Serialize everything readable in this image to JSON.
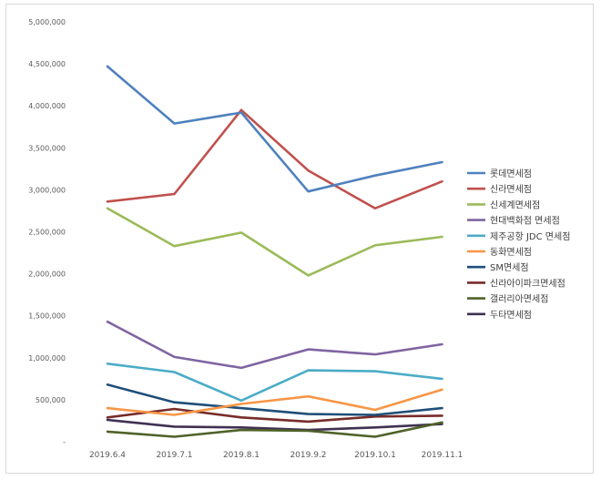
{
  "chart_data": {
    "type": "line",
    "title": "",
    "xlabel": "",
    "ylabel": "",
    "categories": [
      "2019.6.4",
      "2019.7.1",
      "2019.8.1",
      "2019.9.2",
      "2019.10.1",
      "2019.11.1"
    ],
    "ylim": [
      0,
      5000000
    ],
    "yticks": [
      0,
      500000,
      1000000,
      1500000,
      2000000,
      2500000,
      3000000,
      3500000,
      4000000,
      4500000,
      5000000
    ],
    "ytick_labels": [
      "-",
      "500,000",
      "1,000,000",
      "1,500,000",
      "2,000,000",
      "2,500,000",
      "3,000,000",
      "3,500,000",
      "4,000,000",
      "4,500,000",
      "5,000,000"
    ],
    "grid": false,
    "legend_position": "right",
    "series": [
      {
        "name": "롯데면세점",
        "color": "#4f81bd",
        "values": [
          4470000,
          3790000,
          3920000,
          2980000,
          3170000,
          3330000
        ]
      },
      {
        "name": "신라면세점",
        "color": "#c0504d",
        "values": [
          2860000,
          2950000,
          3950000,
          3230000,
          2780000,
          3100000
        ]
      },
      {
        "name": "신세계면세점",
        "color": "#9bbb59",
        "values": [
          2780000,
          2330000,
          2490000,
          1980000,
          2340000,
          2440000
        ]
      },
      {
        "name": "현대백화점 면세점",
        "color": "#8064a2",
        "values": [
          1430000,
          1010000,
          880000,
          1100000,
          1040000,
          1160000
        ]
      },
      {
        "name": "제주공항 JDC 면세점",
        "color": "#4bacc6",
        "values": [
          930000,
          830000,
          490000,
          850000,
          840000,
          750000
        ]
      },
      {
        "name": "동화면세점",
        "color": "#f79646",
        "values": [
          400000,
          320000,
          450000,
          540000,
          380000,
          620000
        ]
      },
      {
        "name": "SM면세점",
        "color": "#1f4e79",
        "values": [
          680000,
          470000,
          400000,
          330000,
          320000,
          400000
        ]
      },
      {
        "name": "신라아이파크면세점",
        "color": "#772c2a",
        "values": [
          290000,
          390000,
          290000,
          240000,
          300000,
          310000
        ]
      },
      {
        "name": "갤러리아면세점",
        "color": "#4f6228",
        "values": [
          120000,
          60000,
          140000,
          130000,
          60000,
          230000
        ]
      },
      {
        "name": "두타면세점",
        "color": "#3f3151",
        "values": [
          260000,
          180000,
          170000,
          140000,
          170000,
          210000
        ]
      }
    ]
  }
}
